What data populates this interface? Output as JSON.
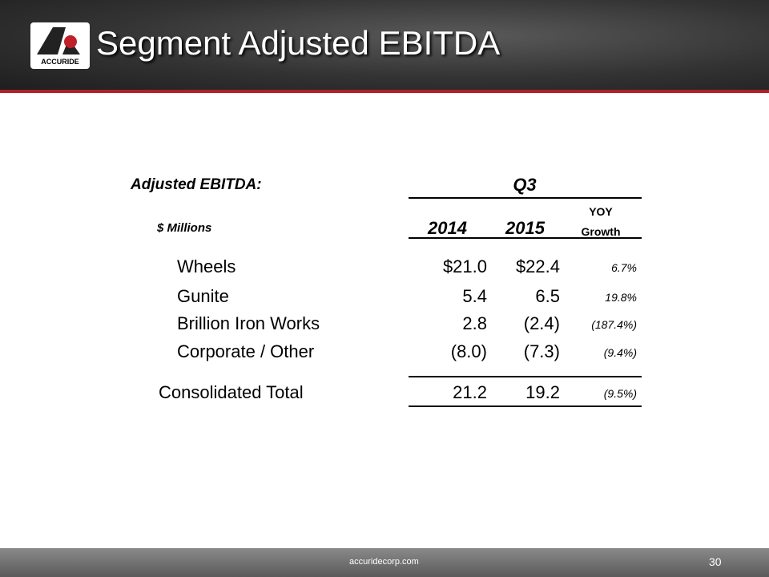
{
  "header": {
    "title": "Segment Adjusted EBITDA",
    "logo_text": "ACCURIDE"
  },
  "table": {
    "label": "Adjusted EBITDA:",
    "period": "Q3",
    "units": "$ Millions",
    "columns": [
      "2014",
      "2015",
      "YOY Growth"
    ],
    "rows": [
      [
        "Wheels",
        "$21.0",
        "$22.4",
        "6.7%"
      ],
      [
        "Gunite",
        "5.4",
        "6.5",
        "19.8%"
      ],
      [
        "Brillion Iron Works",
        "2.8",
        "(2.4)",
        "(187.4%)"
      ],
      [
        "Corporate / Other",
        "(8.0)",
        "(7.3)",
        "(9.4%)"
      ]
    ],
    "total": [
      "Consolidated Total",
      "21.2",
      "19.2",
      "(9.5%)"
    ]
  },
  "footer": {
    "site": "accuridecorp.com",
    "page": "30"
  }
}
